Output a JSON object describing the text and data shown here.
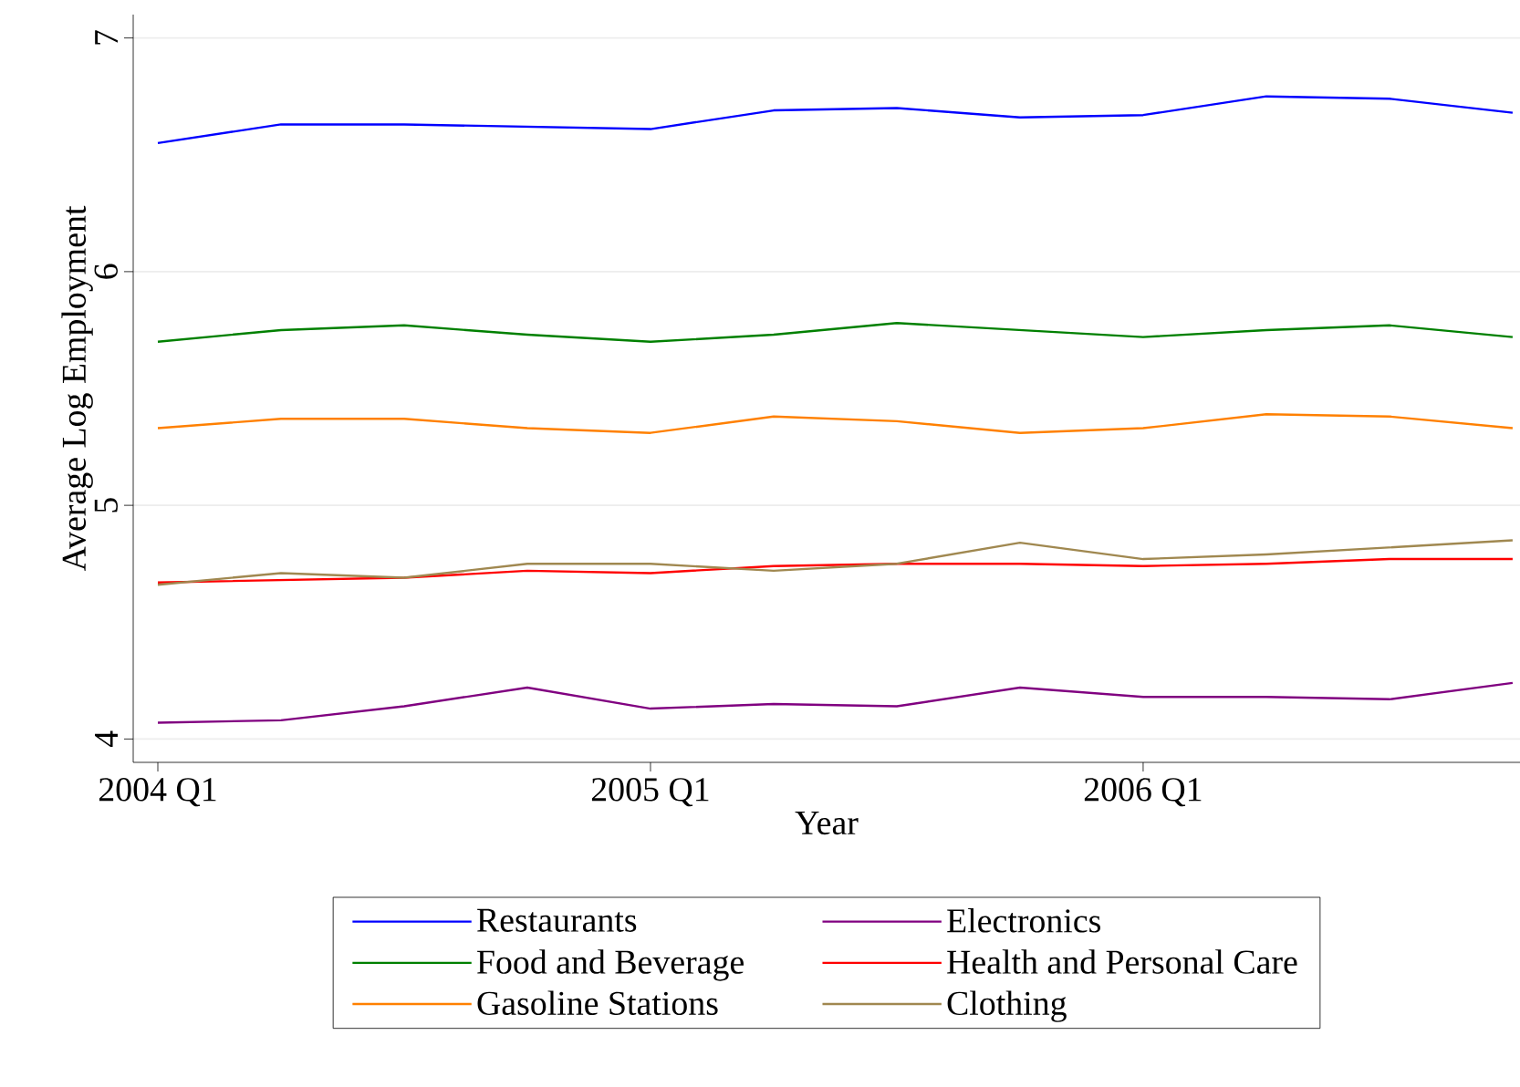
{
  "chart_data": {
    "type": "line",
    "xlabel": "Year",
    "ylabel": "Average Log Employment",
    "categories": [
      "2004 Q1",
      null,
      null,
      null,
      "2005 Q1",
      null,
      null,
      null,
      "2006 Q1",
      null,
      null,
      null
    ],
    "ylim": [
      3.9,
      7.1
    ],
    "yticks": [
      4,
      5,
      6,
      7
    ],
    "grid": "y",
    "legend": "bottom",
    "line_style": "solid",
    "marker": "none",
    "series": [
      {
        "name": "Restaurants",
        "color": "#0000ff",
        "values": [
          6.55,
          6.63,
          6.63,
          6.62,
          6.61,
          6.69,
          6.7,
          6.66,
          6.67,
          6.75,
          6.74,
          6.68
        ]
      },
      {
        "name": "Electronics",
        "color": "#800080",
        "values": [
          4.07,
          4.08,
          4.14,
          4.22,
          4.13,
          4.15,
          4.14,
          4.22,
          4.18,
          4.18,
          4.17,
          4.24
        ]
      },
      {
        "name": "Food and Beverage",
        "color": "#008000",
        "values": [
          5.7,
          5.75,
          5.77,
          5.73,
          5.7,
          5.73,
          5.78,
          5.75,
          5.72,
          5.75,
          5.77,
          5.72
        ]
      },
      {
        "name": "Health and Personal Care",
        "color": "#ff0000",
        "values": [
          4.67,
          4.68,
          4.69,
          4.72,
          4.71,
          4.74,
          4.75,
          4.75,
          4.74,
          4.75,
          4.77,
          4.77
        ]
      },
      {
        "name": "Gasoline Stations",
        "color": "#ff8000",
        "values": [
          5.33,
          5.37,
          5.37,
          5.33,
          5.31,
          5.38,
          5.36,
          5.31,
          5.33,
          5.39,
          5.38,
          5.33
        ]
      },
      {
        "name": "Clothing",
        "color": "#a08850",
        "values": [
          4.66,
          4.71,
          4.69,
          4.75,
          4.75,
          4.72,
          4.75,
          4.84,
          4.77,
          4.79,
          4.82,
          4.85
        ]
      }
    ]
  }
}
